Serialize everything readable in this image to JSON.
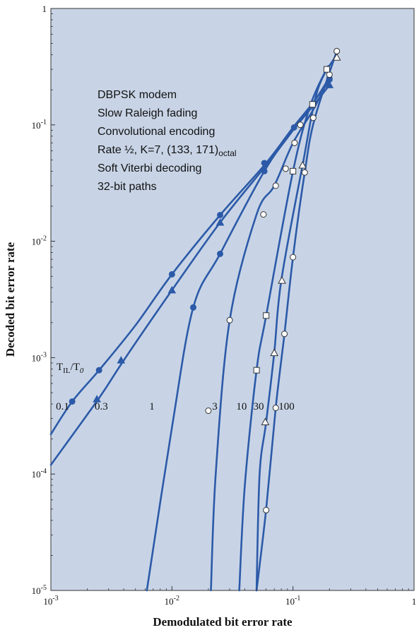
{
  "chart_data": {
    "type": "line",
    "xlabel": "Demodulated bit error rate",
    "ylabel": "Decoded bit error rate",
    "xscale": "log",
    "yscale": "log",
    "xlim": [
      0.001,
      1
    ],
    "ylim": [
      1e-05,
      1
    ],
    "grid": false,
    "background": "#c8d4e6",
    "line_color": "#2c5aa8",
    "x_ticks": [
      {
        "value": 0.001,
        "base": "10",
        "exp": "-3"
      },
      {
        "value": 0.01,
        "base": "10",
        "exp": "-2"
      },
      {
        "value": 0.1,
        "base": "10",
        "exp": "-1"
      },
      {
        "value": 1,
        "base": "1",
        "exp": ""
      }
    ],
    "y_ticks": [
      {
        "value": 1e-05,
        "base": "10",
        "exp": "-5"
      },
      {
        "value": 0.0001,
        "base": "10",
        "exp": "-4"
      },
      {
        "value": 0.001,
        "base": "10",
        "exp": "-3"
      },
      {
        "value": 0.01,
        "base": "10",
        "exp": "-2"
      },
      {
        "value": 0.1,
        "base": "10",
        "exp": "-1"
      },
      {
        "value": 1,
        "base": "1",
        "exp": ""
      }
    ],
    "annotation_lines": [
      {
        "text": "DBPSK modem"
      },
      {
        "text": "Slow Raleigh fading"
      },
      {
        "text": "Convolutional encoding"
      },
      {
        "text": "Rate ½, K=7, (133, 171)",
        "sub": "octal"
      },
      {
        "text": "Soft Viterbi decoding"
      },
      {
        "text": "32-bit paths"
      }
    ],
    "ratio_label": {
      "main": "T",
      "sub1": "IL",
      "mid": "/T",
      "sub2": "0"
    },
    "series": [
      {
        "name": "0.1",
        "label_at": [
          0.0011,
          0.00039
        ],
        "marker": "filled-circle",
        "curve": [
          [
            0.001,
            0.00022
          ],
          [
            0.0015,
            0.00042
          ],
          [
            0.0025,
            0.00078
          ],
          [
            0.005,
            0.0019
          ],
          [
            0.01,
            0.0052
          ],
          [
            0.025,
            0.0168
          ],
          [
            0.06,
            0.047
          ],
          [
            0.1,
            0.095
          ],
          [
            0.15,
            0.16
          ],
          [
            0.195,
            0.245
          ]
        ],
        "points": [
          [
            0.0015,
            0.00042
          ],
          [
            0.0025,
            0.00078
          ],
          [
            0.01,
            0.0052
          ],
          [
            0.025,
            0.0168
          ],
          [
            0.058,
            0.047
          ],
          [
            0.102,
            0.095
          ],
          [
            0.2,
            0.245
          ]
        ]
      },
      {
        "name": "0.3",
        "label_at": [
          0.0023,
          0.00039
        ],
        "marker": "filled-triangle",
        "curve": [
          [
            0.001,
            0.00012
          ],
          [
            0.0025,
            0.00045
          ],
          [
            0.004,
            0.00095
          ],
          [
            0.01,
            0.0038
          ],
          [
            0.025,
            0.0145
          ],
          [
            0.06,
            0.045
          ],
          [
            0.1,
            0.09
          ],
          [
            0.15,
            0.15
          ],
          [
            0.2,
            0.22
          ]
        ],
        "points": [
          [
            0.0024,
            0.00044
          ],
          [
            0.0038,
            0.00095
          ],
          [
            0.01,
            0.0038
          ],
          [
            0.025,
            0.0145
          ],
          [
            0.2,
            0.22
          ]
        ]
      },
      {
        "name": "1",
        "label_at": [
          0.0065,
          0.00039
        ],
        "marker": "filled-circle",
        "curve": [
          [
            0.0062,
            1e-05
          ],
          [
            0.01,
            0.00025
          ],
          [
            0.015,
            0.0027
          ],
          [
            0.025,
            0.0078
          ],
          [
            0.058,
            0.04
          ],
          [
            0.1,
            0.09
          ],
          [
            0.2,
            0.24
          ]
        ],
        "points": [
          [
            0.015,
            0.0027
          ],
          [
            0.025,
            0.0078
          ],
          [
            0.058,
            0.04
          ],
          [
            0.2,
            0.25
          ]
        ]
      },
      {
        "name": "3",
        "label_at": [
          0.0215,
          0.00039
        ],
        "marker": "open-circle",
        "curve": [
          [
            0.021,
            1e-05
          ],
          [
            0.023,
            0.0001
          ],
          [
            0.03,
            0.0021
          ],
          [
            0.05,
            0.017
          ],
          [
            0.07,
            0.03
          ],
          [
            0.1,
            0.07
          ],
          [
            0.15,
            0.14
          ],
          [
            0.2,
            0.26
          ]
        ],
        "points": [
          [
            0.02,
            0.00035
          ],
          [
            0.03,
            0.0021
          ],
          [
            0.057,
            0.017
          ],
          [
            0.072,
            0.03
          ],
          [
            0.087,
            0.042
          ],
          [
            0.103,
            0.07
          ],
          [
            0.115,
            0.1
          ],
          [
            0.147,
            0.115
          ],
          [
            0.2,
            0.27
          ],
          [
            0.23,
            0.43
          ]
        ]
      },
      {
        "name": "10",
        "label_at": [
          0.034,
          0.00039
        ],
        "marker": "open-square",
        "curve": [
          [
            0.036,
            1e-05
          ],
          [
            0.04,
            8e-05
          ],
          [
            0.05,
            0.00078
          ],
          [
            0.06,
            0.0023
          ],
          [
            0.1,
            0.04
          ],
          [
            0.14,
            0.15
          ],
          [
            0.195,
            0.32
          ]
        ],
        "points": [
          [
            0.05,
            0.00078
          ],
          [
            0.06,
            0.0023
          ],
          [
            0.1,
            0.04
          ],
          [
            0.145,
            0.15
          ],
          [
            0.19,
            0.3
          ]
        ]
      },
      {
        "name": "30",
        "label_at": [
          0.047,
          0.00039
        ],
        "marker": "open-triangle",
        "curve": [
          [
            0.05,
            1e-05
          ],
          [
            0.053,
            0.0001
          ],
          [
            0.06,
            0.00028
          ],
          [
            0.07,
            0.0011
          ],
          [
            0.08,
            0.0046
          ],
          [
            0.12,
            0.045
          ],
          [
            0.16,
            0.2
          ],
          [
            0.23,
            0.4
          ]
        ],
        "points": [
          [
            0.059,
            0.00028
          ],
          [
            0.07,
            0.0011
          ],
          [
            0.081,
            0.0046
          ],
          [
            0.12,
            0.045
          ],
          [
            0.23,
            0.38
          ]
        ]
      },
      {
        "name": "100",
        "label_at": [
          0.076,
          0.00039
        ],
        "marker": "open-circle",
        "curve": [
          [
            0.05,
            1e-05
          ],
          [
            0.06,
            5e-05
          ],
          [
            0.072,
            0.00037
          ],
          [
            0.085,
            0.0016
          ],
          [
            0.1,
            0.0073
          ],
          [
            0.125,
            0.039
          ],
          [
            0.15,
            0.11
          ],
          [
            0.23,
            0.43
          ]
        ],
        "points": [
          [
            0.06,
            4.9e-05
          ],
          [
            0.072,
            0.00037
          ],
          [
            0.085,
            0.0016
          ],
          [
            0.1,
            0.0073
          ],
          [
            0.125,
            0.039
          ],
          [
            0.23,
            0.43
          ]
        ]
      }
    ]
  }
}
